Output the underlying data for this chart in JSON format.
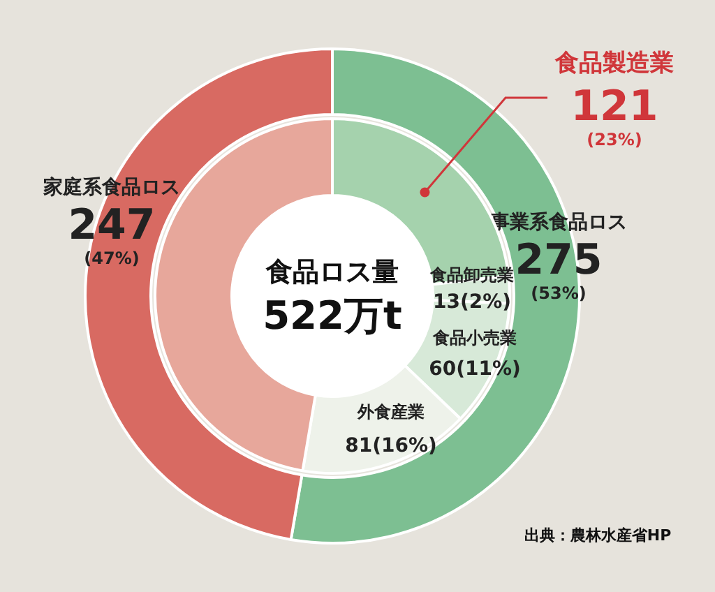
{
  "chart_data": [
    {
      "type": "donut",
      "categories": [
        "事業系食品ロス",
        "家庭系食品ロス"
      ],
      "values": [
        275,
        247
      ],
      "colors": [
        "#7dbf92",
        "#d86a62"
      ],
      "value_labels": [
        "275\n(53%)",
        "247\n(47%)"
      ],
      "annotations": [
        "出典：農林水産省HP"
      ],
      "legend": false
    },
    {
      "type": "donut",
      "categories": [
        "食品製造業",
        "食品卸売業",
        "食品小売業",
        "外食産業",
        null
      ],
      "values": [
        121,
        13,
        60,
        81,
        247
      ],
      "colors": [
        "#a5d2ad",
        "#d7e9d8",
        "#d7e9d8",
        "#eef2ea",
        "#e7a79b"
      ],
      "value_labels": [
        "121\n(23%)",
        "13(2%)",
        "60(11%)",
        "81(16%)",
        null
      ],
      "annotations": [
        "食品ロス量",
        "522万t"
      ],
      "legend": false
    }
  ]
}
